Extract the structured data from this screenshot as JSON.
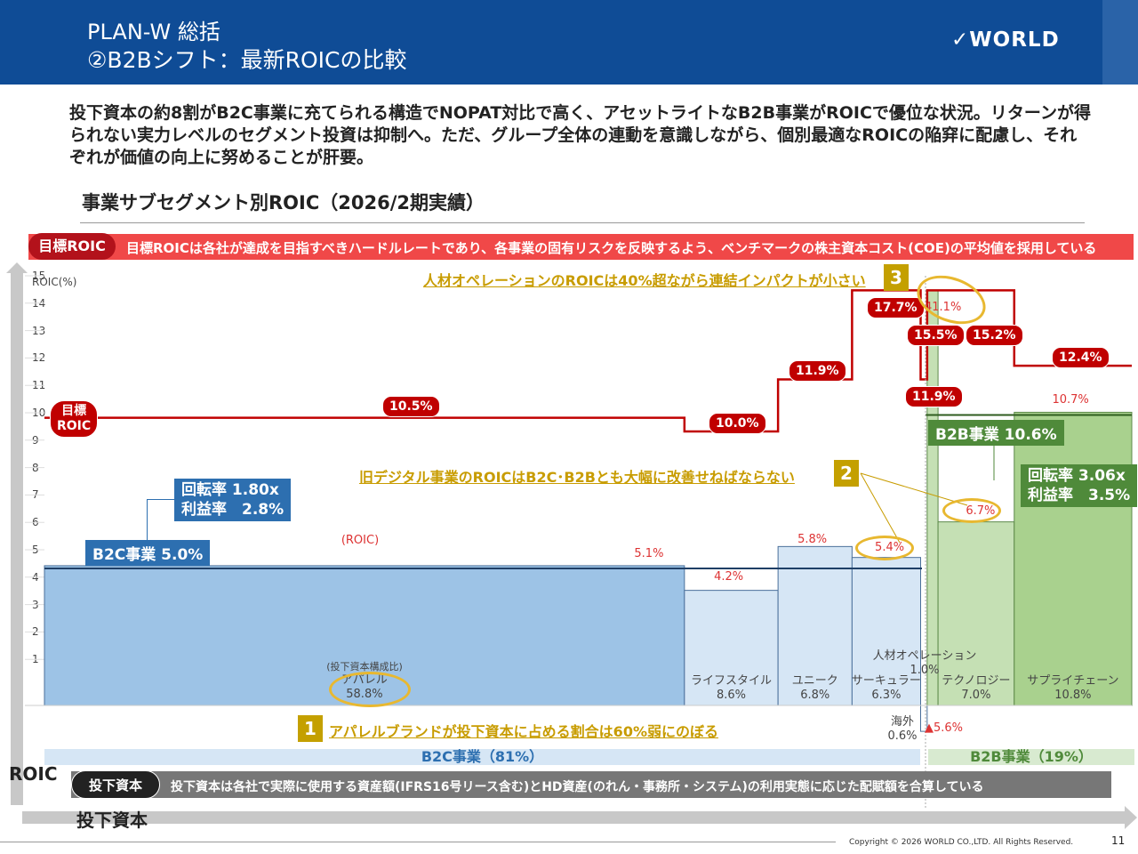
{
  "header": {
    "title_line1": "PLAN-W 総括",
    "title_line2": "②B2Bシフト：最新ROICの比較",
    "logo": "WORLD"
  },
  "lead": "投下資本の約8割がB2C事業に充てられる構造でNOPAT対比で高く、アセットライトなB2B事業がROICで優位な状況。リターンが得られない実力レベルのセグメント投資は抑制へ。ただ、グループ全体の連動を意識しながら、個別最適なROICの陥穽に配慮し、それぞれが価値の向上に努めることが肝要。",
  "subtitle": "事業サブセグメント別ROIC（2026/2期実績）",
  "target_banner": {
    "pill": "目標ROIC",
    "text": "目標ROICは各社が達成を目指すべきハードルレートであり、各事業の固有リスクを反映するよう、ベンチマークの株主資本コスト(COE)の平均値を採用している"
  },
  "capital_banner": {
    "pill": "投下資本",
    "text": "投下資本は各社で実際に使用する資産額(IFRS16号リース含む)とHD資産(のれん・事務所・システム)の利用実態に応じた配賦額を合算している"
  },
  "axis": {
    "y_unit": "ROIC(%)",
    "y_arrow": "ROIC",
    "x_arrow": "投下資本"
  },
  "target_label": "目標\nROIC",
  "annotations": {
    "a1": {
      "num": "1",
      "text": "アパレルブランドが投下資本に占める割合は60%弱にのぼる"
    },
    "a2": {
      "num": "2",
      "text": "旧デジタル事業のROICはB2C･B2Bとも大幅に改善せねばならない"
    },
    "a3": {
      "num": "3",
      "text": "人材オペレーションのROICは40%超ながら連結インパクトが小さい"
    }
  },
  "b2c": {
    "box": "B2C事業 5.0%",
    "turnover": "回転率 1.80x",
    "margin": "利益率　2.8%",
    "band": "B2C事業（81%）"
  },
  "b2b": {
    "box": "B2B事業 10.6%",
    "turnover": "回転率 3.06x",
    "margin": "利益率　3.5%",
    "band": "B2B事業（19%）"
  },
  "roic_caption": "(ROIC)",
  "capital_caption": "(投下資本構成比)",
  "colors": {
    "b2c_bar": "#9dc3e6",
    "b2c_light": "#d6e6f5",
    "b2b_bar": "#a9d18e",
    "b2b_light": "#c5e0b4",
    "target": "#c00000"
  },
  "chart_data": {
    "type": "marimekko",
    "ylabel": "ROIC(%)",
    "ylim": [
      0,
      15
    ],
    "yticks": [
      1,
      2,
      3,
      4,
      5,
      6,
      7,
      8,
      9,
      10,
      11,
      12,
      13,
      14,
      15
    ],
    "segments": [
      {
        "name": "アパレル",
        "capital_share": "58.8%",
        "share": 58.8,
        "roic": 5.1,
        "roic_label": "5.1%",
        "target": 10.5,
        "target_label": "10.5%",
        "group": "B2C"
      },
      {
        "name": "ライフスタイル",
        "capital_share": "8.6%",
        "share": 8.6,
        "roic": 4.2,
        "roic_label": "4.2%",
        "target": 10.0,
        "target_label": "10.0%",
        "group": "B2C"
      },
      {
        "name": "ユニーク",
        "capital_share": "6.8%",
        "share": 6.8,
        "roic": 5.8,
        "roic_label": "5.8%",
        "target": 11.9,
        "target_label": "11.9%",
        "group": "B2C"
      },
      {
        "name": "サーキュラー",
        "capital_share": "6.3%",
        "share": 6.3,
        "roic": 5.4,
        "roic_label": "5.4%",
        "target": 17.7,
        "target_label": "17.7%",
        "group": "B2C"
      },
      {
        "name": "海外",
        "capital_share": "0.6%",
        "share": 0.6,
        "roic": -5.6,
        "roic_label": "▲5.6%",
        "target": 11.9,
        "target_label": "11.9%",
        "group": "B2C"
      },
      {
        "name": "人材オペレーション",
        "capital_share": "1.0%",
        "share": 1.0,
        "roic": 41.1,
        "roic_label": "41.1%",
        "target": 15.5,
        "target_label": "15.5%",
        "group": "B2B"
      },
      {
        "name": "テクノロジー",
        "capital_share": "7.0%",
        "share": 7.0,
        "roic": 6.7,
        "roic_label": "6.7%",
        "target": 15.2,
        "target_label": "15.2%",
        "group": "B2B"
      },
      {
        "name": "サプライチェーン",
        "capital_share": "10.8%",
        "share": 10.8,
        "roic": 10.7,
        "roic_label": "10.7%",
        "target": 12.4,
        "target_label": "12.4%",
        "group": "B2B"
      }
    ],
    "group_roic": {
      "B2C": 5.0,
      "B2B": 10.6
    }
  },
  "footer": {
    "copyright": "Copyright © 2026 WORLD CO.,LTD. All Rights Reserved.",
    "page": "11"
  }
}
